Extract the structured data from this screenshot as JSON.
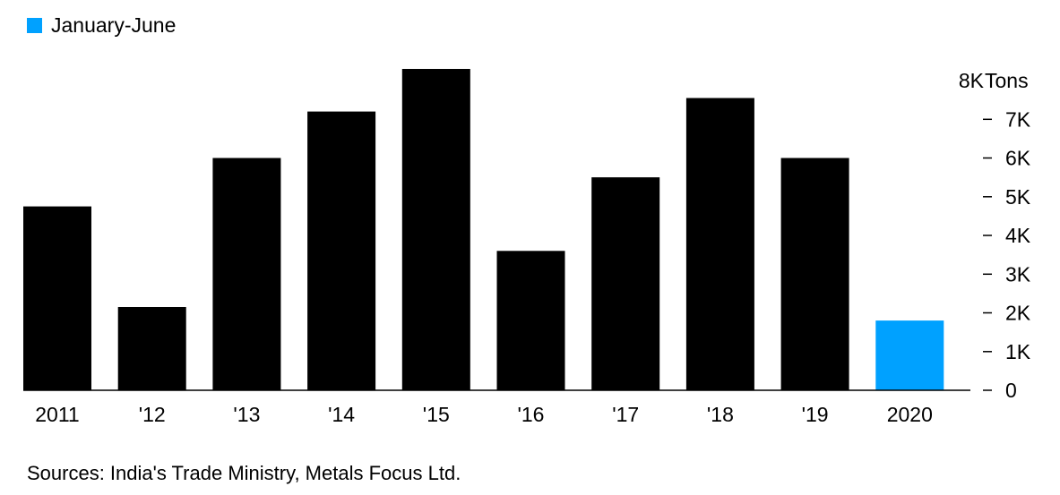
{
  "legend": {
    "label": "January-June",
    "color": "#00a1ff"
  },
  "source": "Sources: India's Trade Ministry, Metals Focus Ltd.",
  "chart_data": {
    "type": "bar",
    "categories": [
      "2011",
      "'12",
      "'13",
      "'14",
      "'15",
      "'16",
      "'17",
      "'18",
      "'19",
      "2020"
    ],
    "values": [
      4750,
      2150,
      6000,
      7200,
      8300,
      3600,
      5500,
      7550,
      6000,
      1800
    ],
    "highlight_categories": [
      "2020"
    ],
    "ylabel": "Tons",
    "ylim": [
      0,
      8000
    ],
    "yticks": [
      0,
      1000,
      2000,
      3000,
      4000,
      5000,
      6000,
      7000,
      8000
    ],
    "ytick_labels": [
      "0",
      "1K",
      "2K",
      "3K",
      "4K",
      "5K",
      "6K",
      "7K",
      "8K"
    ],
    "y_axis_position": "right",
    "grid": false,
    "legend_position": "top-left",
    "colors": {
      "default": "#000000",
      "highlight": "#00a1ff"
    }
  }
}
